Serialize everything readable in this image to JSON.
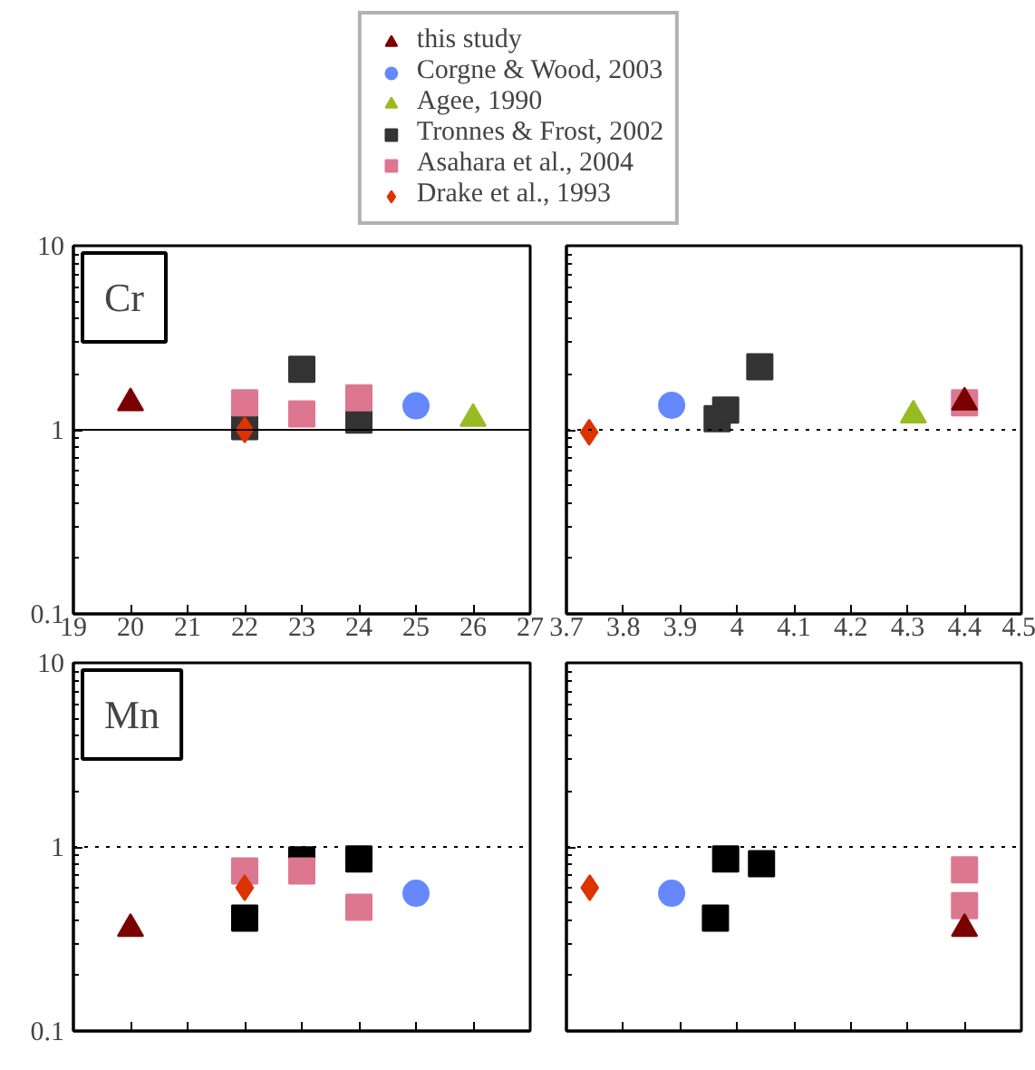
{
  "chart_data": [
    {
      "type": "scatter",
      "legend": "top",
      "grid": false,
      "log": "y",
      "annotations": [
        "Cr"
      ],
      "xlim": [
        19,
        27
      ],
      "xticks": [
        19,
        20,
        21,
        22,
        23,
        24,
        25,
        26,
        27
      ],
      "ylim": [
        0.1,
        10
      ],
      "yticks": [
        0.1,
        1,
        10
      ],
      "ref_lines": [
        {
          "axis": "y",
          "value": 1,
          "line_style": "solid",
          "color": "#000000"
        }
      ],
      "series": [
        {
          "name": "this study",
          "color": "#7a0000",
          "marker": "triangle",
          "x": [
            20
          ],
          "values": [
            1.4
          ]
        },
        {
          "name": "Corgne & Wood, 2003",
          "color": "#6688ff",
          "marker": "circle",
          "x": [
            25
          ],
          "values": [
            1.35
          ]
        },
        {
          "name": "Agee, 1990",
          "color": "#99bb22",
          "marker": "triangle",
          "x": [
            26
          ],
          "values": [
            1.15
          ]
        },
        {
          "name": "Tronnes & Frost, 2002",
          "color": "#333333",
          "marker": "square",
          "x": [
            22,
            23,
            24
          ],
          "values": [
            1.04,
            2.13,
            1.13
          ]
        },
        {
          "name": "Asahara et al., 2004",
          "color": "#dd7790",
          "marker": "square",
          "x": [
            22,
            23,
            24
          ],
          "values": [
            1.4,
            1.22,
            1.49
          ]
        },
        {
          "name": "Drake et al., 1993",
          "color": "#dd3300",
          "marker": "diamond",
          "x": [
            22
          ],
          "values": [
            1.0
          ]
        }
      ]
    },
    {
      "type": "scatter",
      "grid": false,
      "log": "y",
      "tick_labels": "x",
      "xlim": [
        3.7,
        4.5
      ],
      "xticks": [
        3.7,
        3.8,
        3.9,
        4,
        4.1,
        4.2,
        4.3,
        4.4,
        4.5
      ],
      "ylim": [
        0.1,
        10
      ],
      "yticks": [
        {
          "value": 0.1,
          "label": null
        },
        {
          "value": 1,
          "label": null
        },
        {
          "value": 10,
          "label": null
        }
      ],
      "ref_lines": [
        {
          "axis": "y",
          "value": 1,
          "line_style": "dotted",
          "color": "#000000"
        }
      ],
      "series": [
        {
          "color": "#7a0000",
          "marker": "triangle",
          "x": [
            4.4
          ],
          "values": [
            1.41
          ]
        },
        {
          "color": "#6688ff",
          "marker": "circle",
          "x": [
            3.885
          ],
          "values": [
            1.36
          ]
        },
        {
          "color": "#99bb22",
          "marker": "triangle",
          "x": [
            4.31
          ],
          "values": [
            1.2
          ]
        },
        {
          "color": "#333333",
          "marker": "square",
          "x": [
            3.965,
            3.98,
            4.04
          ],
          "values": [
            1.15,
            1.28,
            2.2
          ]
        },
        {
          "color": "#dd7790",
          "marker": "square",
          "x": [
            4.4
          ],
          "values": [
            1.4
          ]
        },
        {
          "color": "#dd3300",
          "marker": "diamond",
          "x": [
            3.74
          ],
          "values": [
            0.97
          ]
        }
      ]
    },
    {
      "type": "scatter",
      "grid": false,
      "log": "y",
      "tick_labels": "y",
      "annotations": [
        "Mn"
      ],
      "xlim": [
        19,
        27
      ],
      "xticks": [
        {
          "value": 20,
          "label": null
        },
        {
          "value": 21,
          "label": null
        },
        {
          "value": 22,
          "label": null
        },
        {
          "value": 23,
          "label": null
        },
        {
          "value": 24,
          "label": null
        },
        {
          "value": 25,
          "label": null
        },
        {
          "value": 26,
          "label": null
        }
      ],
      "ylim": [
        0.1,
        10
      ],
      "yticks": [
        0.1,
        1,
        10
      ],
      "ref_lines": [
        {
          "axis": "y",
          "value": 1,
          "line_style": "dotted",
          "color": "#000000"
        }
      ],
      "series": [
        {
          "color": "#7a0000",
          "marker": "triangle",
          "x": [
            20
          ],
          "values": [
            0.36
          ]
        },
        {
          "color": "#6688ff",
          "marker": "circle",
          "x": [
            25
          ],
          "values": [
            0.56
          ]
        },
        {
          "color": "#000000",
          "marker": "square",
          "x": [
            22,
            23,
            24
          ],
          "values": [
            0.41,
            0.85,
            0.86
          ]
        },
        {
          "color": "#dd7790",
          "marker": "square",
          "x": [
            22,
            23,
            24
          ],
          "values": [
            0.74,
            0.74,
            0.47
          ]
        },
        {
          "color": "#dd3300",
          "marker": "diamond",
          "x": [
            22
          ],
          "values": [
            0.6
          ]
        }
      ]
    },
    {
      "type": "scatter",
      "grid": false,
      "log": "y",
      "tick_labels": false,
      "xlim": [
        3.7,
        4.5
      ],
      "xticks": [
        {
          "value": 3.8,
          "label": null
        },
        {
          "value": 3.9,
          "label": null
        },
        {
          "value": 4,
          "label": null
        },
        {
          "value": 4.1,
          "label": null
        },
        {
          "value": 4.2,
          "label": null
        },
        {
          "value": 4.3,
          "label": null
        },
        {
          "value": 4.4,
          "label": null
        }
      ],
      "ylim": [
        0.1,
        10
      ],
      "yticks": [
        {
          "value": 0.1,
          "label": null
        },
        {
          "value": 1,
          "label": null
        },
        {
          "value": 10,
          "label": null
        }
      ],
      "ref_lines": [
        {
          "axis": "y",
          "value": 1,
          "line_style": "dotted",
          "color": "#000000"
        }
      ],
      "series": [
        {
          "color": "#7a0000",
          "marker": "triangle",
          "x": [
            4.4
          ],
          "values": [
            0.36
          ]
        },
        {
          "color": "#6688ff",
          "marker": "circle",
          "x": [
            3.885
          ],
          "values": [
            0.56
          ]
        },
        {
          "color": "#000000",
          "marker": "square",
          "x": [
            3.98,
            4.043,
            3.962
          ],
          "values": [
            0.86,
            0.81,
            0.41
          ]
        },
        {
          "color": "#dd7790",
          "marker": "square",
          "x": [
            4.4,
            4.4
          ],
          "values": [
            0.75,
            0.48
          ]
        },
        {
          "color": "#dd3300",
          "marker": "diamond",
          "x": [
            3.741
          ],
          "values": [
            0.6
          ]
        }
      ]
    }
  ]
}
